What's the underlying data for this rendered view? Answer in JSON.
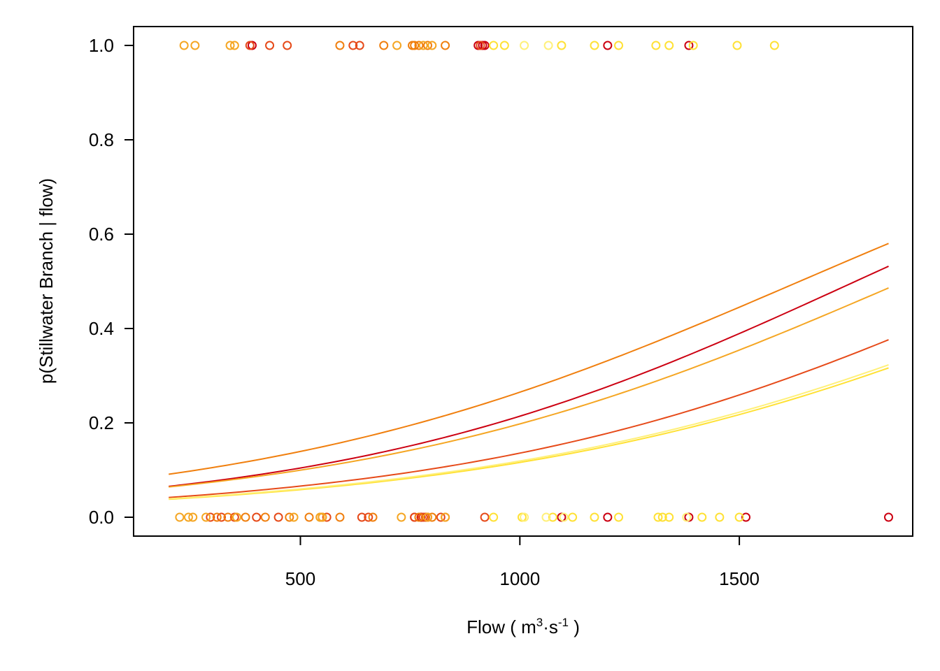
{
  "chart_data": {
    "type": "scatter",
    "xlabel": "Flow ( m3·s-1 )",
    "xlabel_parts": {
      "pre": "Flow ( m",
      "sup1": "3",
      "mid": "·s",
      "sup2": "-1",
      "post": " )"
    },
    "ylabel": "p(Stillwater Branch | flow)",
    "xlim": [
      120,
      1895
    ],
    "ylim": [
      -0.04,
      1.04
    ],
    "x_ticks": [
      500,
      1000,
      1500
    ],
    "x_tick_labels": [
      "500",
      "1000",
      "1500"
    ],
    "y_ticks": [
      0.0,
      0.2,
      0.4,
      0.6,
      0.8,
      1.0
    ],
    "y_tick_labels": [
      "0.0",
      "0.2",
      "0.4",
      "0.6",
      "0.8",
      "1.0"
    ],
    "grid": false,
    "legend": "none",
    "series": [
      {
        "color": "#CC0011",
        "curve": {
          "x0": 200,
          "x1": 1840,
          "b0": -3.0,
          "b1": 0.0017
        },
        "points_y1": [
          390,
          905,
          915,
          920,
          1200,
          1385
        ],
        "points_y0": [
          760,
          775,
          790,
          1095,
          1200,
          1385,
          1515,
          1840
        ]
      },
      {
        "color": "#E64A19",
        "curve": {
          "x0": 200,
          "x1": 1840,
          "b0": -3.45,
          "b1": 0.0016
        },
        "points_y1": [
          385,
          430,
          470,
          620,
          635,
          910
        ],
        "points_y0": [
          295,
          320,
          350,
          400,
          450,
          550,
          560,
          640,
          655,
          760,
          780,
          785,
          820,
          830,
          920
        ]
      },
      {
        "color": "#F07F0E",
        "curve": {
          "x0": 200,
          "x1": 1840,
          "b0": -2.62,
          "b1": 0.0016
        },
        "points_y1": [
          590,
          690,
          755,
          760,
          770,
          790,
          830
        ],
        "points_y0": [
          310,
          335,
          375,
          420,
          475,
          520,
          545,
          590,
          665,
          770,
          800
        ]
      },
      {
        "color": "#F5A623",
        "curve": {
          "x0": 200,
          "x1": 1840,
          "b0": -3.0,
          "b1": 0.0016
        },
        "points_y1": [
          235,
          260,
          340,
          350,
          720,
          780,
          800
        ],
        "points_y0": [
          225,
          245,
          255,
          285,
          355,
          485,
          545,
          550,
          730,
          790,
          830
        ]
      },
      {
        "color": "#FFE135",
        "curve": {
          "x0": 200,
          "x1": 1840,
          "b0": -3.53,
          "b1": 0.0015
        },
        "points_y1": [
          940,
          965,
          1095,
          1170,
          1225,
          1310,
          1340,
          1395,
          1495,
          1580
        ],
        "points_y0": [
          940,
          1005,
          1075,
          1120,
          1170,
          1225,
          1315,
          1325,
          1340,
          1415,
          1455,
          1500
        ]
      },
      {
        "color": "#FFF07A",
        "curve": {
          "x0": 200,
          "x1": 1840,
          "b0": -3.5,
          "b1": 0.0015
        },
        "points_y1": [
          1010,
          1065
        ],
        "points_y0": [
          1010,
          1060,
          1100,
          1380
        ]
      }
    ]
  }
}
